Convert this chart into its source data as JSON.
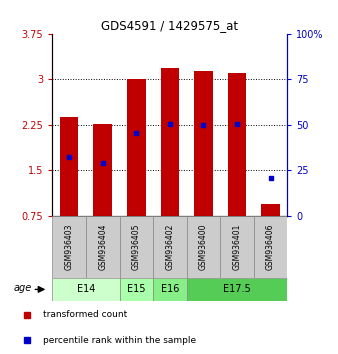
{
  "title": "GDS4591 / 1429575_at",
  "samples": [
    "GSM936403",
    "GSM936404",
    "GSM936405",
    "GSM936402",
    "GSM936400",
    "GSM936401",
    "GSM936406"
  ],
  "red_values": [
    2.38,
    2.27,
    3.0,
    3.18,
    3.13,
    3.1,
    0.95
  ],
  "blue_values": [
    1.72,
    1.62,
    2.12,
    2.27,
    2.25,
    2.27,
    1.38
  ],
  "ylim_left": [
    0.75,
    3.75
  ],
  "ylim_right": [
    0,
    100
  ],
  "yticks_left": [
    0.75,
    1.5,
    2.25,
    3.0,
    3.75
  ],
  "yticks_right": [
    0,
    25,
    50,
    75,
    100
  ],
  "ytick_labels_left": [
    "0.75",
    "1.5",
    "2.25",
    "3",
    "3.75"
  ],
  "ytick_labels_right": [
    "0",
    "25",
    "50",
    "75",
    "100%"
  ],
  "bar_color": "#c00000",
  "marker_color": "#0000cc",
  "bar_bottom": 0.75,
  "gridlines_at": [
    1.5,
    2.25,
    3.0
  ],
  "age_groups": [
    {
      "label": "E14",
      "start": 0,
      "end": 2,
      "color": "#ccffcc"
    },
    {
      "label": "E15",
      "start": 2,
      "end": 3,
      "color": "#aaffaa"
    },
    {
      "label": "E16",
      "start": 3,
      "end": 4,
      "color": "#88ee88"
    },
    {
      "label": "E17.5",
      "start": 4,
      "end": 7,
      "color": "#55cc55"
    }
  ],
  "age_label": "age",
  "legend_red": "transformed count",
  "legend_blue": "percentile rank within the sample",
  "sample_box_color": "#cccccc",
  "sample_box_edge": "#888888"
}
